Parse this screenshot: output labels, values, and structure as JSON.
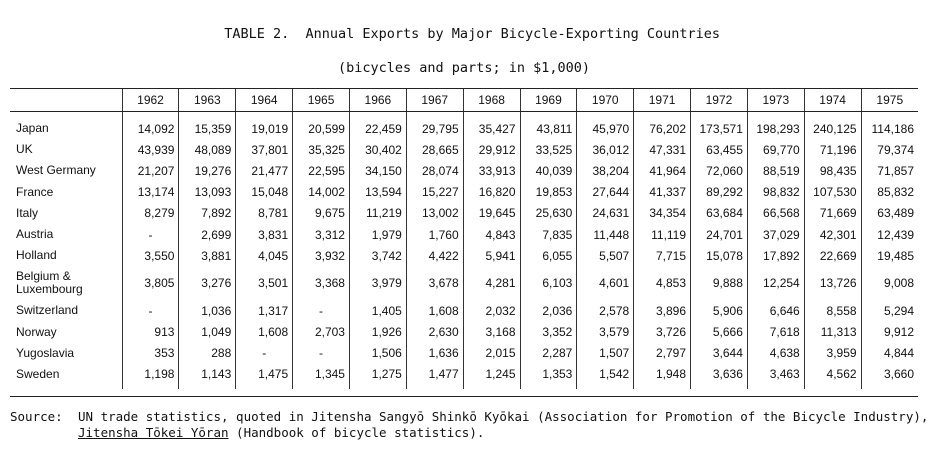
{
  "title": {
    "line1": "TABLE 2.  Annual Exports by Major Bicycle-Exporting Countries",
    "line2": "(bicycles and parts; in $1,000)"
  },
  "table": {
    "years": [
      "1962",
      "1963",
      "1964",
      "1965",
      "1966",
      "1967",
      "1968",
      "1969",
      "1970",
      "1971",
      "1972",
      "1973",
      "1974",
      "1975"
    ],
    "rows": [
      {
        "country": "Japan",
        "values": [
          "14,092",
          "15,359",
          "19,019",
          "20,599",
          "22,459",
          "29,795",
          "35,427",
          "43,811",
          "45,970",
          "76,202",
          "173,571",
          "198,293",
          "240,125",
          "114,186"
        ]
      },
      {
        "country": "UK",
        "values": [
          "43,939",
          "48,089",
          "37,801",
          "35,325",
          "30,402",
          "28,665",
          "29,912",
          "33,525",
          "36,012",
          "47,331",
          "63,455",
          "69,770",
          "71,196",
          "79,374"
        ]
      },
      {
        "country": "West Germany",
        "values": [
          "21,207",
          "19,276",
          "21,477",
          "22,595",
          "34,150",
          "28,074",
          "33,913",
          "40,039",
          "38,204",
          "41,964",
          "72,060",
          "88,519",
          "98,435",
          "71,857"
        ]
      },
      {
        "country": "France",
        "values": [
          "13,174",
          "13,093",
          "15,048",
          "14,002",
          "13,594",
          "15,227",
          "16,820",
          "19,853",
          "27,644",
          "41,337",
          "89,292",
          "98,832",
          "107,530",
          "85,832"
        ]
      },
      {
        "country": "Italy",
        "values": [
          "8,279",
          "7,892",
          "8,781",
          "9,675",
          "11,219",
          "13,002",
          "19,645",
          "25,630",
          "24,631",
          "34,354",
          "63,684",
          "66,568",
          "71,669",
          "63,489"
        ]
      },
      {
        "country": "Austria",
        "values": [
          "-",
          "2,699",
          "3,831",
          "3,312",
          "1,979",
          "1,760",
          "4,843",
          "7,835",
          "11,448",
          "11,119",
          "24,701",
          "37,029",
          "42,301",
          "12,439"
        ]
      },
      {
        "country": "Holland",
        "values": [
          "3,550",
          "3,881",
          "4,045",
          "3,932",
          "3,742",
          "4,422",
          "5,941",
          "6,055",
          "5,507",
          "7,715",
          "15,078",
          "17,892",
          "22,669",
          "19,485"
        ]
      },
      {
        "country": "Belgium &\nLuxembourg",
        "values": [
          "3,805",
          "3,276",
          "3,501",
          "3,368",
          "3,979",
          "3,678",
          "4,281",
          "6,103",
          "4,601",
          "4,853",
          "9,888",
          "12,254",
          "13,726",
          "9,008"
        ]
      },
      {
        "country": "Switzerland",
        "values": [
          "-",
          "1,036",
          "1,317",
          "-",
          "1,405",
          "1,608",
          "2,032",
          "2,036",
          "2,578",
          "3,896",
          "5,906",
          "6,646",
          "8,558",
          "5,294"
        ]
      },
      {
        "country": "Norway",
        "values": [
          "913",
          "1,049",
          "1,608",
          "2,703",
          "1,926",
          "2,630",
          "3,168",
          "3,352",
          "3,579",
          "3,726",
          "5,666",
          "7,618",
          "11,313",
          "9,912"
        ]
      },
      {
        "country": "Yugoslavia",
        "values": [
          "353",
          "288",
          "-",
          "-",
          "1,506",
          "1,636",
          "2,015",
          "2,287",
          "1,507",
          "2,797",
          "3,644",
          "4,638",
          "3,959",
          "4,844"
        ]
      },
      {
        "country": "Sweden",
        "values": [
          "1,198",
          "1,143",
          "1,475",
          "1,345",
          "1,275",
          "1,477",
          "1,245",
          "1,353",
          "1,542",
          "1,948",
          "3,636",
          "3,463",
          "4,562",
          "3,660"
        ]
      }
    ]
  },
  "source": {
    "label": "Source:",
    "line1": "UN trade statistics, quoted in Jitensha Sangyō Shinkō Kyōkai (Association for Promotion of the Bicycle Industry),",
    "line2_underlined": "Jitensha Tōkei Yōran",
    "line2_rest": " (Handbook of bicycle statistics)."
  }
}
